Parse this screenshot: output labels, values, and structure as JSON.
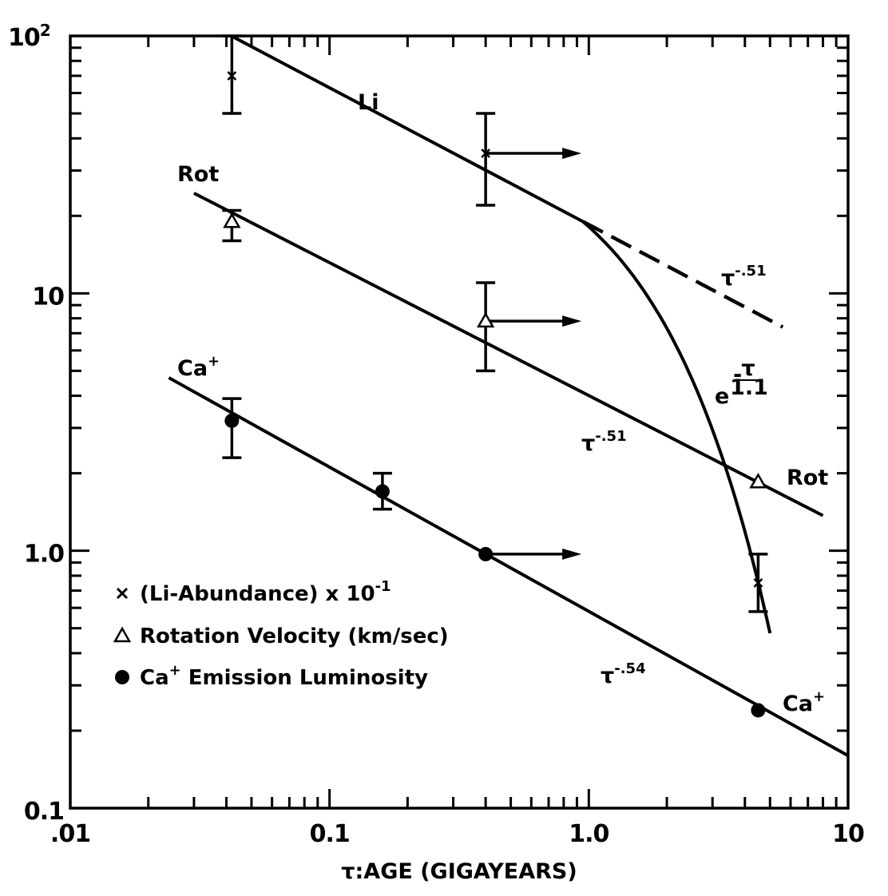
{
  "chart_data": {
    "type": "scatter",
    "xscale": "log",
    "yscale": "log",
    "xlim": [
      0.01,
      10
    ],
    "ylim": [
      0.1,
      100
    ],
    "xlabel": "τ:AGE (GIGAYEARS)",
    "ylabel": "",
    "x_ticks": [
      {
        "value": 0.01,
        "label": ".01"
      },
      {
        "value": 0.1,
        "label": "0.1"
      },
      {
        "value": 1.0,
        "label": "1.0"
      },
      {
        "value": 10,
        "label": "10"
      }
    ],
    "y_ticks": [
      {
        "value": 0.1,
        "label": "0.1"
      },
      {
        "value": 1.0,
        "label": "1.0"
      },
      {
        "value": 10,
        "label": "10"
      },
      {
        "value": 100,
        "label": "10",
        "exponent": "2"
      }
    ],
    "grid": false,
    "legend_position": "lower-left",
    "legend": [
      {
        "marker": "×",
        "label": "(Li-Abundance) x 10",
        "superscript": "-1"
      },
      {
        "marker": "△",
        "label": "Rotation Velocity (km/sec)"
      },
      {
        "marker": "●",
        "label": "Ca",
        "superscript": "+",
        "label_after": " Emission Luminosity"
      }
    ],
    "series": [
      {
        "name": "Li",
        "marker": "x",
        "points": [
          {
            "x": 0.042,
            "y": 70,
            "ylo": 50,
            "yhi": 100
          },
          {
            "x": 0.4,
            "y": 35,
            "ylo": 22,
            "yhi": 50,
            "lower_limit_x": true
          },
          {
            "x": 4.5,
            "y": 0.75,
            "ylo": 0.58,
            "yhi": 0.97
          }
        ]
      },
      {
        "name": "Rot",
        "marker": "triangle",
        "points": [
          {
            "x": 0.042,
            "y": 19,
            "ylo": 16,
            "yhi": 21
          },
          {
            "x": 0.4,
            "y": 7.8,
            "ylo": 5,
            "yhi": 11,
            "lower_limit_x": true
          },
          {
            "x": 4.5,
            "y": 1.85
          }
        ]
      },
      {
        "name": "Ca+",
        "marker": "dot",
        "points": [
          {
            "x": 0.042,
            "y": 3.2,
            "ylo": 2.3,
            "yhi": 3.9
          },
          {
            "x": 0.16,
            "y": 1.7,
            "ylo": 1.45,
            "yhi": 2.0
          },
          {
            "x": 0.4,
            "y": 0.97,
            "lower_limit_x": true
          },
          {
            "x": 4.5,
            "y": 0.24
          }
        ]
      }
    ],
    "fits": [
      {
        "name": "Li",
        "style": "solid",
        "points": [
          [
            0.0418,
            100
          ],
          [
            0.95,
            19
          ]
        ]
      },
      {
        "name": "Li",
        "style": "dashed",
        "points": [
          [
            0.95,
            19
          ],
          [
            5.6,
            7.4
          ]
        ]
      },
      {
        "name": "Li",
        "style": "solid",
        "function": "exp",
        "tau": 1.1,
        "anchor": [
          0.95,
          19
        ],
        "x_end": 5.0
      },
      {
        "name": "Rot",
        "style": "solid",
        "points": [
          [
            0.03,
            24.5
          ],
          [
            8.0,
            1.37
          ]
        ]
      },
      {
        "name": "Ca+",
        "style": "solid",
        "points": [
          [
            0.024,
            4.7
          ],
          [
            10,
            0.16
          ]
        ]
      }
    ],
    "annotations": [
      {
        "text": "Li"
      },
      {
        "text": "Rot"
      },
      {
        "text": "Rot"
      },
      {
        "text": "Ca",
        "superscript": "+"
      },
      {
        "text": "Ca",
        "superscript": "+"
      },
      {
        "text": "τ",
        "superscript": "-.51"
      },
      {
        "text": "τ",
        "superscript": "-.51"
      },
      {
        "text": "τ",
        "superscript": "-.54"
      },
      {
        "text": "e",
        "superscript": "-τ/1.1"
      }
    ]
  }
}
